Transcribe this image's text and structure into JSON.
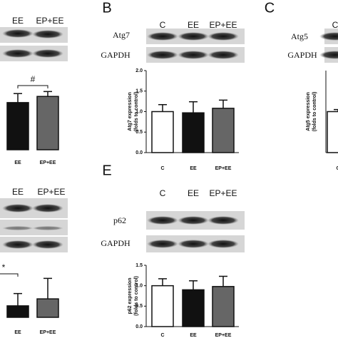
{
  "panels": [
    {
      "lanes": [
        "EE",
        "EP+EE"
      ],
      "blots": []
    },
    {
      "letter": "B",
      "lanes": [
        "C",
        "EE",
        "EP+EE"
      ],
      "blots": [
        "Atg7",
        "GAPDH"
      ]
    },
    {
      "letter": "C",
      "lanes": [
        "C"
      ],
      "blots": [
        "Atg5",
        "GAPDH"
      ]
    },
    {
      "lanes": [
        "EE",
        "EP+EE"
      ],
      "blots": []
    },
    {
      "letter": "E",
      "lanes": [
        "C",
        "EE",
        "EP+EE"
      ],
      "blots": [
        "p62",
        "GAPDH"
      ]
    }
  ],
  "chart_data": [
    {
      "type": "bar",
      "categories": [
        "EE",
        "EP+EE"
      ],
      "values": [
        1.15,
        1.3
      ],
      "errors": [
        0.22,
        0.12
      ],
      "colors": [
        "#111111",
        "#666666"
      ],
      "ylim": [
        0,
        2
      ],
      "annotation": "#"
    },
    {
      "type": "bar",
      "categories": [
        "C",
        "EE",
        "EP+EE"
      ],
      "values": [
        1.0,
        0.97,
        1.08
      ],
      "errors": [
        0.17,
        0.27,
        0.2
      ],
      "colors": [
        "#ffffff",
        "#111111",
        "#666666"
      ],
      "ylim": [
        0,
        2
      ],
      "yticks": [
        {
          "value": 0,
          "label": "0.0"
        },
        0.5,
        {
          "value": 1,
          "label": "1.0"
        },
        1.5,
        {
          "value": 2,
          "label": "2.0"
        }
      ],
      "ylabel": [
        "Atg7 expression",
        "(folds to control)"
      ]
    },
    {
      "type": "bar",
      "categories": [
        "C"
      ],
      "values": [
        1.0
      ],
      "errors": [
        0.05
      ],
      "colors": [
        "#ffffff"
      ],
      "ylim": [
        0,
        2
      ],
      "ylabel": [
        "Atg5 expression",
        "(folds to control)"
      ]
    },
    {
      "type": "bar",
      "categories": [
        "EE",
        "EP+EE"
      ],
      "values": [
        0.28,
        0.45
      ],
      "errors": [
        0.3,
        0.5
      ],
      "colors": [
        "#111111",
        "#666666"
      ],
      "ylim": [
        0,
        2
      ],
      "annotation": "*"
    },
    {
      "type": "bar",
      "categories": [
        "C",
        "EE",
        "EP+EE"
      ],
      "values": [
        1.0,
        0.9,
        0.98
      ],
      "errors": [
        0.17,
        0.22,
        0.25
      ],
      "colors": [
        "#ffffff",
        "#111111",
        "#666666"
      ],
      "ylim": [
        0,
        1.5
      ],
      "yticks": [
        {
          "value": 0,
          "label": "0.0"
        },
        0.5,
        {
          "value": 1,
          "label": "1.0"
        },
        1.5
      ],
      "ylabel": [
        "p62 expression",
        "(folds to control)"
      ]
    }
  ]
}
